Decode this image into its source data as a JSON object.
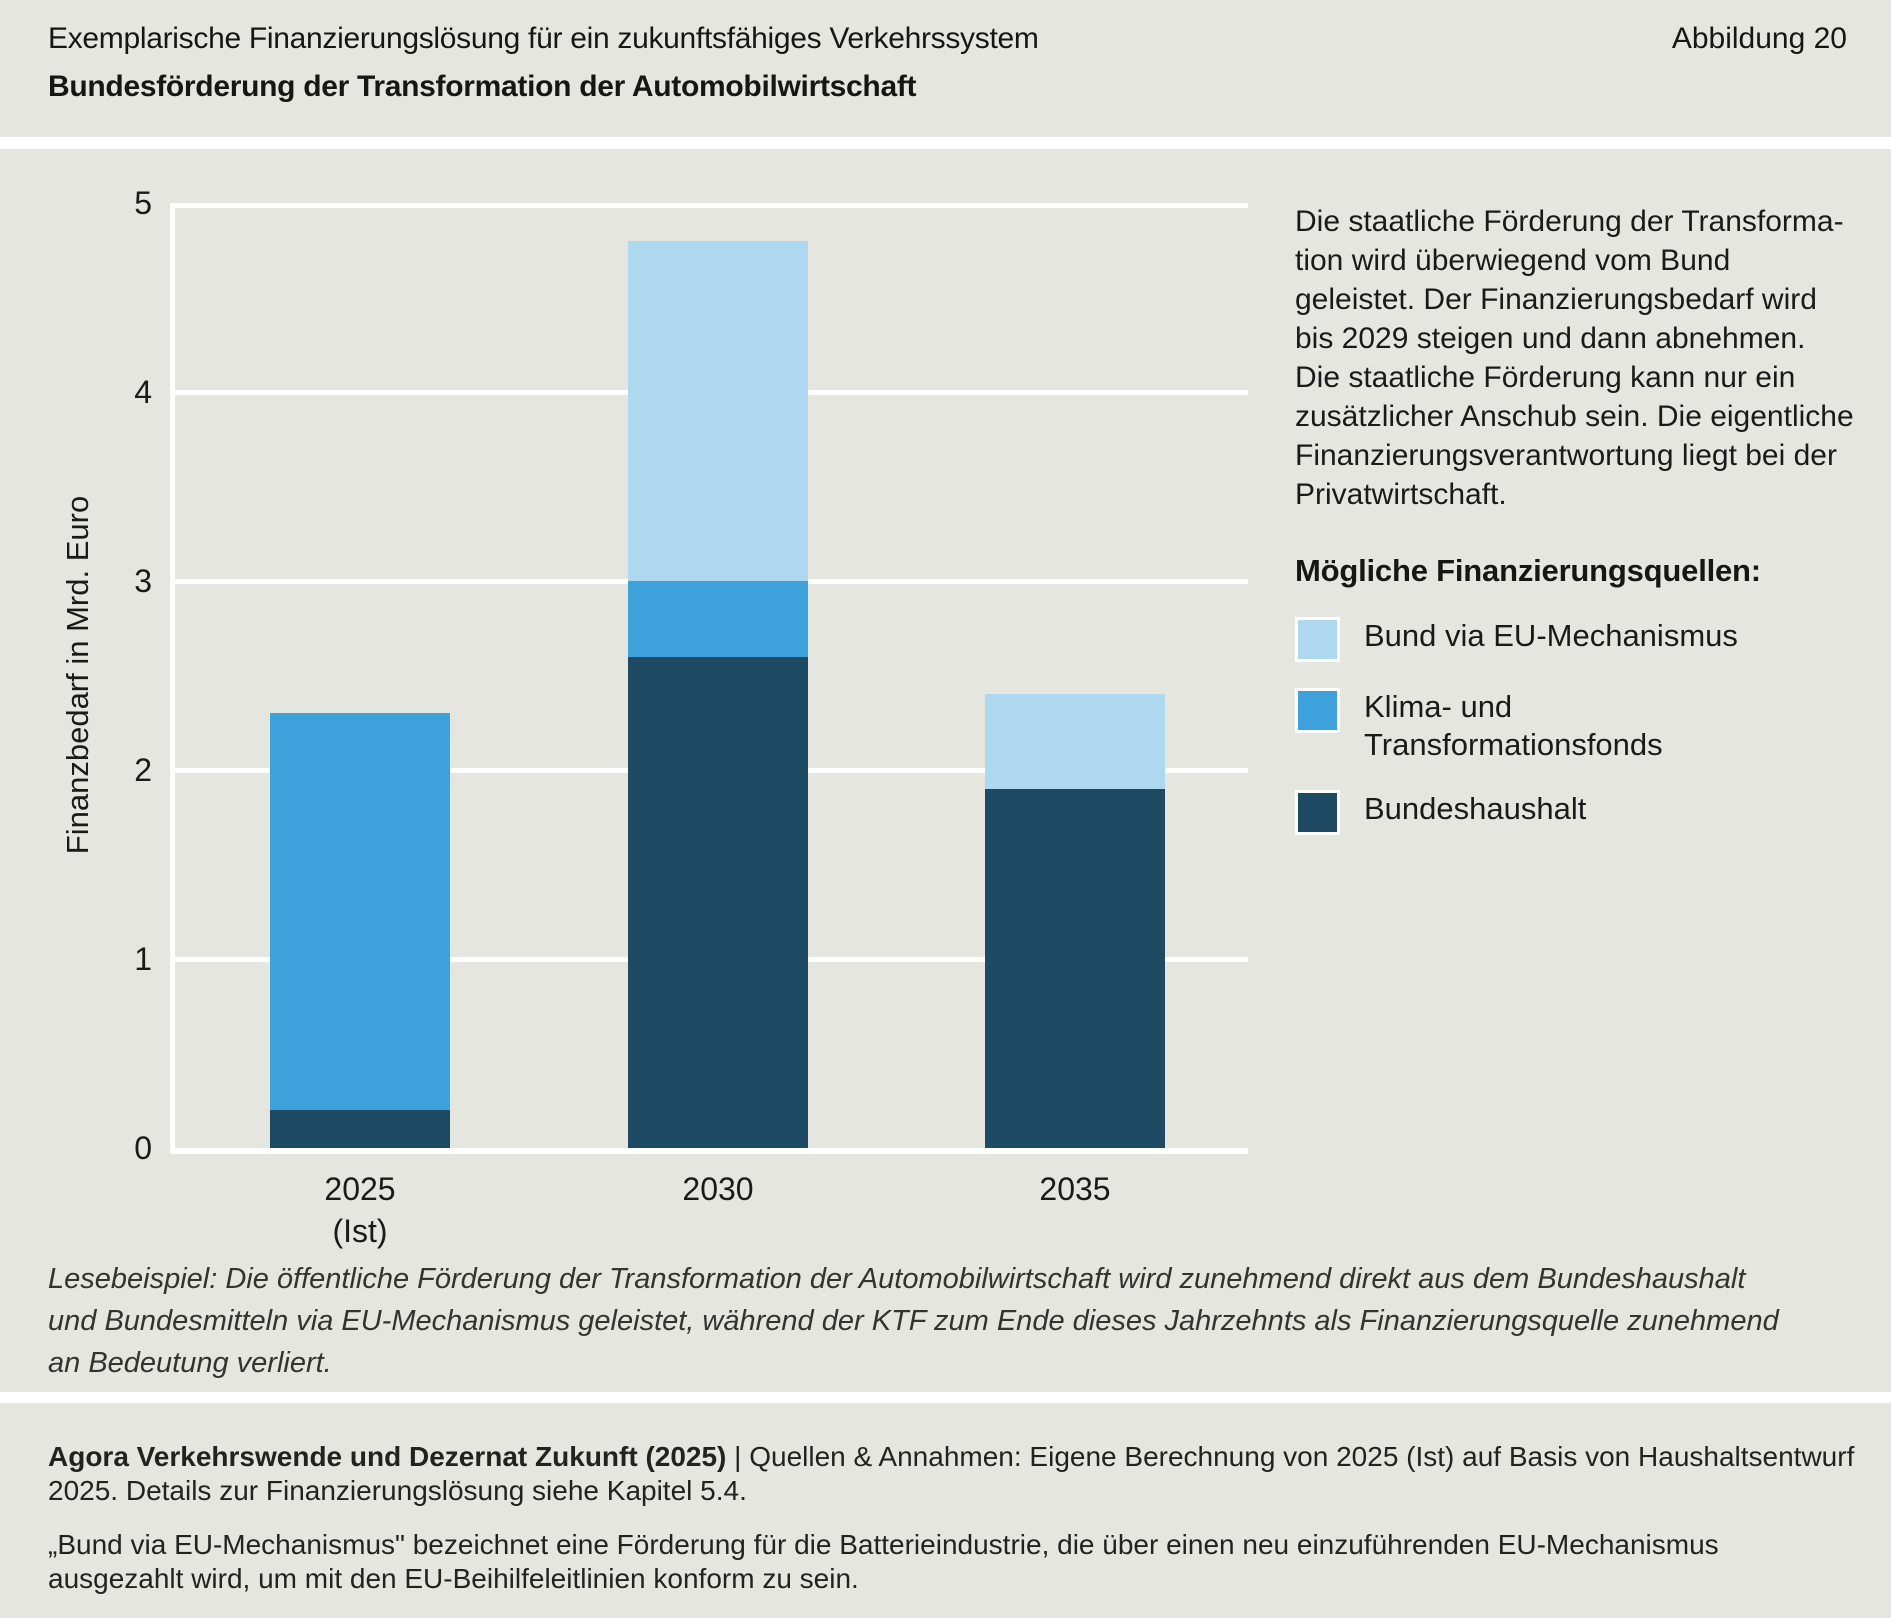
{
  "header": {
    "title_line1": "Exemplarische Finanzierungslösung für ein zukunftsfähiges Verkehrssystem",
    "title_line2": "Bundesförderung der Transformation der Automobilwirtschaft",
    "figure_label": "Abbildung 20"
  },
  "chart_data": {
    "type": "bar",
    "stacked": true,
    "title": "Bundesförderung der Transformation der Automobilwirtschaft",
    "ylabel": "Finanzbedarf in Mrd. Euro",
    "xlabel": "",
    "ylim": [
      0,
      5
    ],
    "yticks": [
      0,
      1,
      2,
      3,
      4,
      5
    ],
    "grid": "horizontal-white",
    "legend_position": "right",
    "categories": [
      "2025",
      "2030",
      "2035"
    ],
    "category_sublabels": [
      "(Ist)",
      "",
      ""
    ],
    "series": [
      {
        "name": "Bundeshaushalt",
        "color": "#1f4a63",
        "values": [
          0.2,
          2.6,
          1.9
        ]
      },
      {
        "name": "Klima- und Transformationsfonds",
        "color": "#3da1dc",
        "values": [
          2.1,
          0.4,
          0
        ]
      },
      {
        "name": "Bund via EU-Mechanismus",
        "color": "#aed8f0",
        "values": [
          0,
          1.8,
          0.5
        ]
      }
    ],
    "totals": [
      2.3,
      4.8,
      2.4
    ]
  },
  "sidebar": {
    "paragraph_lines": [
      "Die staatliche Förderung der Transforma-",
      "tion wird überwiegend vom Bund",
      "geleistet. Der Finanzierungsbedarf wird",
      "bis 2029 steigen und dann abnehmen.",
      "Die staatliche Förderung kann nur ein",
      "zusätzlicher Anschub sein. Die eigentliche",
      "Finanzierungsverantwortung liegt bei der",
      "Privatwirtschaft."
    ],
    "legend_title": "Mögliche Finanzierungsquellen:",
    "legend_items": [
      {
        "label": "Bund via EU-Mechanismus",
        "color": "#aed8f0"
      },
      {
        "label": "Klima- und Transformationsfonds",
        "color": "#3da1dc"
      },
      {
        "label": "Bundeshaushalt",
        "color": "#1f4a63"
      }
    ]
  },
  "caption": {
    "lines": [
      "Lesebeispiel: Die öffentliche Förderung der Transformation der Automobilwirtschaft wird zunehmend direkt aus dem Bundeshaushalt",
      "und Bundesmitteln via EU-Mechanismus geleistet, während der KTF zum Ende dieses Jahrzehnts als Finanzierungsquelle zunehmend",
      "an Bedeutung verliert."
    ]
  },
  "footer": {
    "source_bold": "Agora Verkehrswende und Dezernat Zukunft (2025)",
    "source_separator": " | ",
    "source_text": "Quellen & Annahmen: Eigene Berechnung von 2025 (Ist) auf Basis von Haushaltsentwurf 2025. Details zur Finanzierungslösung siehe Kapitel 5.4.",
    "note_text": "„Bund via EU-Mechanismus\" bezeichnet eine Förderung für die Batterieindustrie, die über einen neu einzuführenden EU-Mechanismus ausgezahlt wird, um mit den EU-Beihilfeleitlinien konform zu sein."
  },
  "colors": {
    "background": "#e6e6e1",
    "separator": "#ffffff",
    "bundeshaushalt": "#1f4a63",
    "ktf": "#3da1dc",
    "eu_mechanismus": "#aed8f0",
    "text": "#161615"
  }
}
